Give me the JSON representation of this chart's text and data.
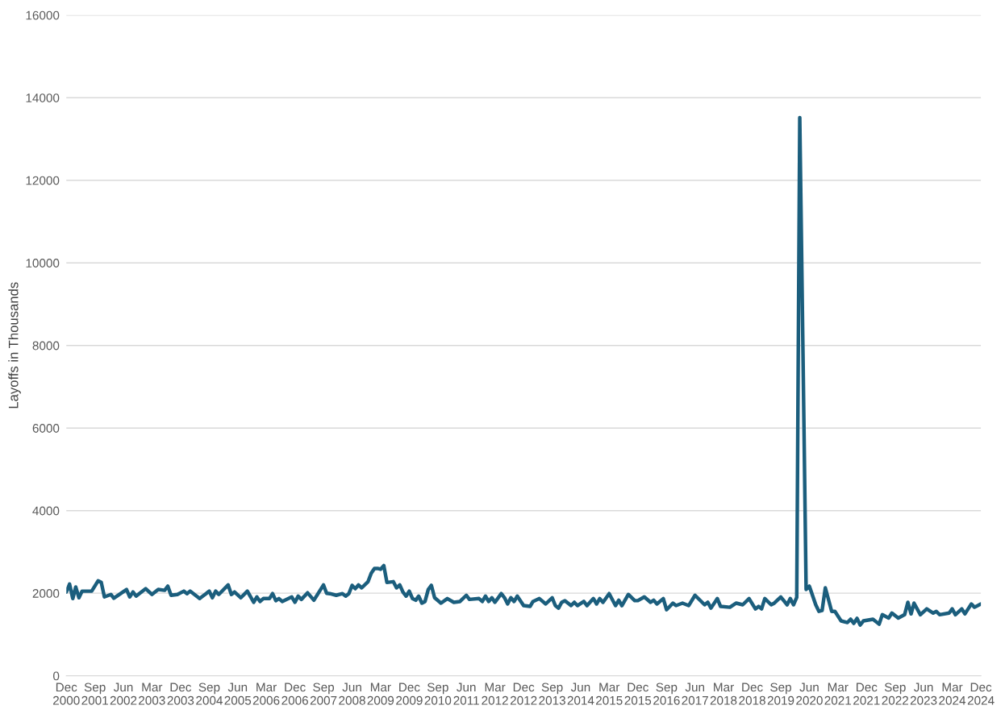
{
  "chart_data": {
    "type": "line",
    "ylabel": "Layoffs in Thousands",
    "ylim": [
      0,
      16000
    ],
    "yticks": [
      0,
      2000,
      4000,
      6000,
      8000,
      10000,
      12000,
      14000,
      16000
    ],
    "xlim": [
      "2000-12",
      "2024-12"
    ],
    "xticks": [
      {
        "value": "2000-12",
        "label": "Dec\n2000"
      },
      {
        "value": "2001-09",
        "label": "Sep\n2001"
      },
      {
        "value": "2002-06",
        "label": "Jun\n2002"
      },
      {
        "value": "2003-03",
        "label": "Mar\n2003"
      },
      {
        "value": "2003-12",
        "label": "Dec\n2003"
      },
      {
        "value": "2004-09",
        "label": "Sep\n2004"
      },
      {
        "value": "2005-06",
        "label": "Jun\n2005"
      },
      {
        "value": "2006-03",
        "label": "Mar\n2006"
      },
      {
        "value": "2006-12",
        "label": "Dec\n2006"
      },
      {
        "value": "2007-09",
        "label": "Sep\n2007"
      },
      {
        "value": "2008-06",
        "label": "Jun\n2008"
      },
      {
        "value": "2009-03",
        "label": "Mar\n2009"
      },
      {
        "value": "2009-12",
        "label": "Dec\n2009"
      },
      {
        "value": "2010-09",
        "label": "Sep\n2010"
      },
      {
        "value": "2011-06",
        "label": "Jun\n2011"
      },
      {
        "value": "2012-03",
        "label": "Mar\n2012"
      },
      {
        "value": "2012-12",
        "label": "Dec\n2012"
      },
      {
        "value": "2013-09",
        "label": "Sep\n2013"
      },
      {
        "value": "2014-06",
        "label": "Jun\n2014"
      },
      {
        "value": "2015-03",
        "label": "Mar\n2015"
      },
      {
        "value": "2015-12",
        "label": "Dec\n2015"
      },
      {
        "value": "2016-09",
        "label": "Sep\n2016"
      },
      {
        "value": "2017-06",
        "label": "Jun\n2017"
      },
      {
        "value": "2018-03",
        "label": "Mar\n2018"
      },
      {
        "value": "2018-12",
        "label": "Dec\n2018"
      },
      {
        "value": "2019-09",
        "label": "Sep\n2019"
      },
      {
        "value": "2020-06",
        "label": "Jun\n2020"
      },
      {
        "value": "2021-03",
        "label": "Mar\n2021"
      },
      {
        "value": "2021-12",
        "label": "Dec\n2021"
      },
      {
        "value": "2022-09",
        "label": "Sep\n2022"
      },
      {
        "value": "2023-06",
        "label": "Jun\n2023"
      },
      {
        "value": "2024-03",
        "label": "Mar\n2024"
      },
      {
        "value": "2024-12",
        "label": "Dec\n2024"
      }
    ],
    "grid": "y",
    "marker": "none",
    "line_style": "solid",
    "series": [
      {
        "color": "#1b5e7d",
        "x": [
          "2000-12",
          "2001-01",
          "2001-02",
          "2001-03",
          "2001-04",
          "2001-05",
          "2001-08",
          "2001-10",
          "2001-11",
          "2001-12",
          "2002-02",
          "2002-03",
          "2002-07",
          "2002-08",
          "2002-09",
          "2002-10",
          "2003-01",
          "2003-03",
          "2003-05",
          "2003-07",
          "2003-08",
          "2003-09",
          "2003-11",
          "2004-01",
          "2004-02",
          "2004-03",
          "2004-06",
          "2004-09",
          "2004-10",
          "2004-11",
          "2004-12",
          "2005-03",
          "2005-04",
          "2005-05",
          "2005-07",
          "2005-09",
          "2005-11",
          "2005-12",
          "2006-01",
          "2006-02",
          "2006-04",
          "2006-05",
          "2006-06",
          "2006-07",
          "2006-08",
          "2006-11",
          "2006-12",
          "2007-01",
          "2007-02",
          "2007-04",
          "2007-06",
          "2007-09",
          "2007-10",
          "2007-11",
          "2008-01",
          "2008-03",
          "2008-04",
          "2008-05",
          "2008-06",
          "2008-07",
          "2008-08",
          "2008-09",
          "2008-11",
          "2008-12",
          "2009-01",
          "2009-02",
          "2009-03",
          "2009-04",
          "2009-05",
          "2009-07",
          "2009-08",
          "2009-09",
          "2009-10",
          "2009-11",
          "2009-12",
          "2010-01",
          "2010-02",
          "2010-03",
          "2010-04",
          "2010-05",
          "2010-06",
          "2010-07",
          "2010-08",
          "2010-10",
          "2010-12",
          "2011-02",
          "2011-04",
          "2011-06",
          "2011-07",
          "2011-10",
          "2011-11",
          "2011-12",
          "2012-01",
          "2012-02",
          "2012-03",
          "2012-05",
          "2012-06",
          "2012-07",
          "2012-08",
          "2012-09",
          "2012-10",
          "2012-12",
          "2013-02",
          "2013-03",
          "2013-05",
          "2013-07",
          "2013-09",
          "2013-10",
          "2013-11",
          "2013-12",
          "2014-01",
          "2014-03",
          "2014-04",
          "2014-05",
          "2014-07",
          "2014-08",
          "2014-10",
          "2014-11",
          "2014-12",
          "2015-01",
          "2015-03",
          "2015-05",
          "2015-06",
          "2015-07",
          "2015-09",
          "2015-11",
          "2015-12",
          "2016-02",
          "2016-04",
          "2016-05",
          "2016-06",
          "2016-08",
          "2016-09",
          "2016-11",
          "2016-12",
          "2017-02",
          "2017-04",
          "2017-06",
          "2017-09",
          "2017-10",
          "2017-11",
          "2018-01",
          "2018-02",
          "2018-05",
          "2018-07",
          "2018-09",
          "2018-11",
          "2019-01",
          "2019-02",
          "2019-03",
          "2019-04",
          "2019-06",
          "2019-07",
          "2019-09",
          "2019-11",
          "2019-12",
          "2020-01",
          "2020-02",
          "2020-03",
          "2020-04",
          "2020-05",
          "2020-06",
          "2020-08",
          "2020-09",
          "2020-10",
          "2020-11",
          "2021-01",
          "2021-02",
          "2021-04",
          "2021-06",
          "2021-07",
          "2021-08",
          "2021-09",
          "2021-10",
          "2021-11",
          "2022-02",
          "2022-04",
          "2022-05",
          "2022-07",
          "2022-08",
          "2022-10",
          "2022-12",
          "2023-01",
          "2023-02",
          "2023-03",
          "2023-05",
          "2023-07",
          "2023-09",
          "2023-10",
          "2023-11",
          "2024-02",
          "2024-03",
          "2024-04",
          "2024-06",
          "2024-07",
          "2024-08",
          "2024-09",
          "2024-10",
          "2024-12"
        ],
        "values": [
          2030,
          2220,
          1870,
          2150,
          1890,
          2050,
          2050,
          2300,
          2260,
          1910,
          1970,
          1880,
          2090,
          1910,
          2030,
          1930,
          2110,
          1970,
          2090,
          2070,
          2170,
          1950,
          1970,
          2050,
          1990,
          2050,
          1870,
          2050,
          1890,
          2050,
          1970,
          2200,
          1970,
          2030,
          1890,
          2050,
          1780,
          1910,
          1800,
          1870,
          1870,
          1990,
          1820,
          1870,
          1800,
          1910,
          1780,
          1930,
          1850,
          2010,
          1830,
          2200,
          2000,
          1990,
          1950,
          1990,
          1930,
          1990,
          2190,
          2110,
          2200,
          2130,
          2280,
          2480,
          2600,
          2600,
          2580,
          2670,
          2260,
          2280,
          2130,
          2200,
          2030,
          1930,
          2050,
          1870,
          1830,
          1930,
          1760,
          1800,
          2090,
          2190,
          1890,
          1760,
          1870,
          1780,
          1800,
          1950,
          1850,
          1870,
          1800,
          1930,
          1800,
          1890,
          1780,
          1990,
          1890,
          1740,
          1890,
          1800,
          1930,
          1700,
          1680,
          1800,
          1870,
          1740,
          1890,
          1700,
          1640,
          1780,
          1820,
          1700,
          1780,
          1700,
          1800,
          1700,
          1870,
          1740,
          1870,
          1780,
          1990,
          1700,
          1830,
          1700,
          1970,
          1820,
          1820,
          1910,
          1780,
          1830,
          1740,
          1870,
          1600,
          1760,
          1700,
          1760,
          1700,
          1950,
          1720,
          1780,
          1640,
          1870,
          1680,
          1660,
          1760,
          1720,
          1870,
          1620,
          1680,
          1620,
          1870,
          1720,
          1760,
          1910,
          1720,
          1870,
          1720,
          1900,
          13520,
          7800,
          2090,
          2170,
          1720,
          1560,
          1580,
          2130,
          1560,
          1560,
          1330,
          1290,
          1370,
          1270,
          1390,
          1230,
          1330,
          1370,
          1250,
          1480,
          1400,
          1520,
          1400,
          1480,
          1780,
          1500,
          1760,
          1480,
          1620,
          1520,
          1560,
          1480,
          1520,
          1620,
          1480,
          1620,
          1500,
          1620,
          1740,
          1660,
          1740
        ]
      }
    ]
  }
}
